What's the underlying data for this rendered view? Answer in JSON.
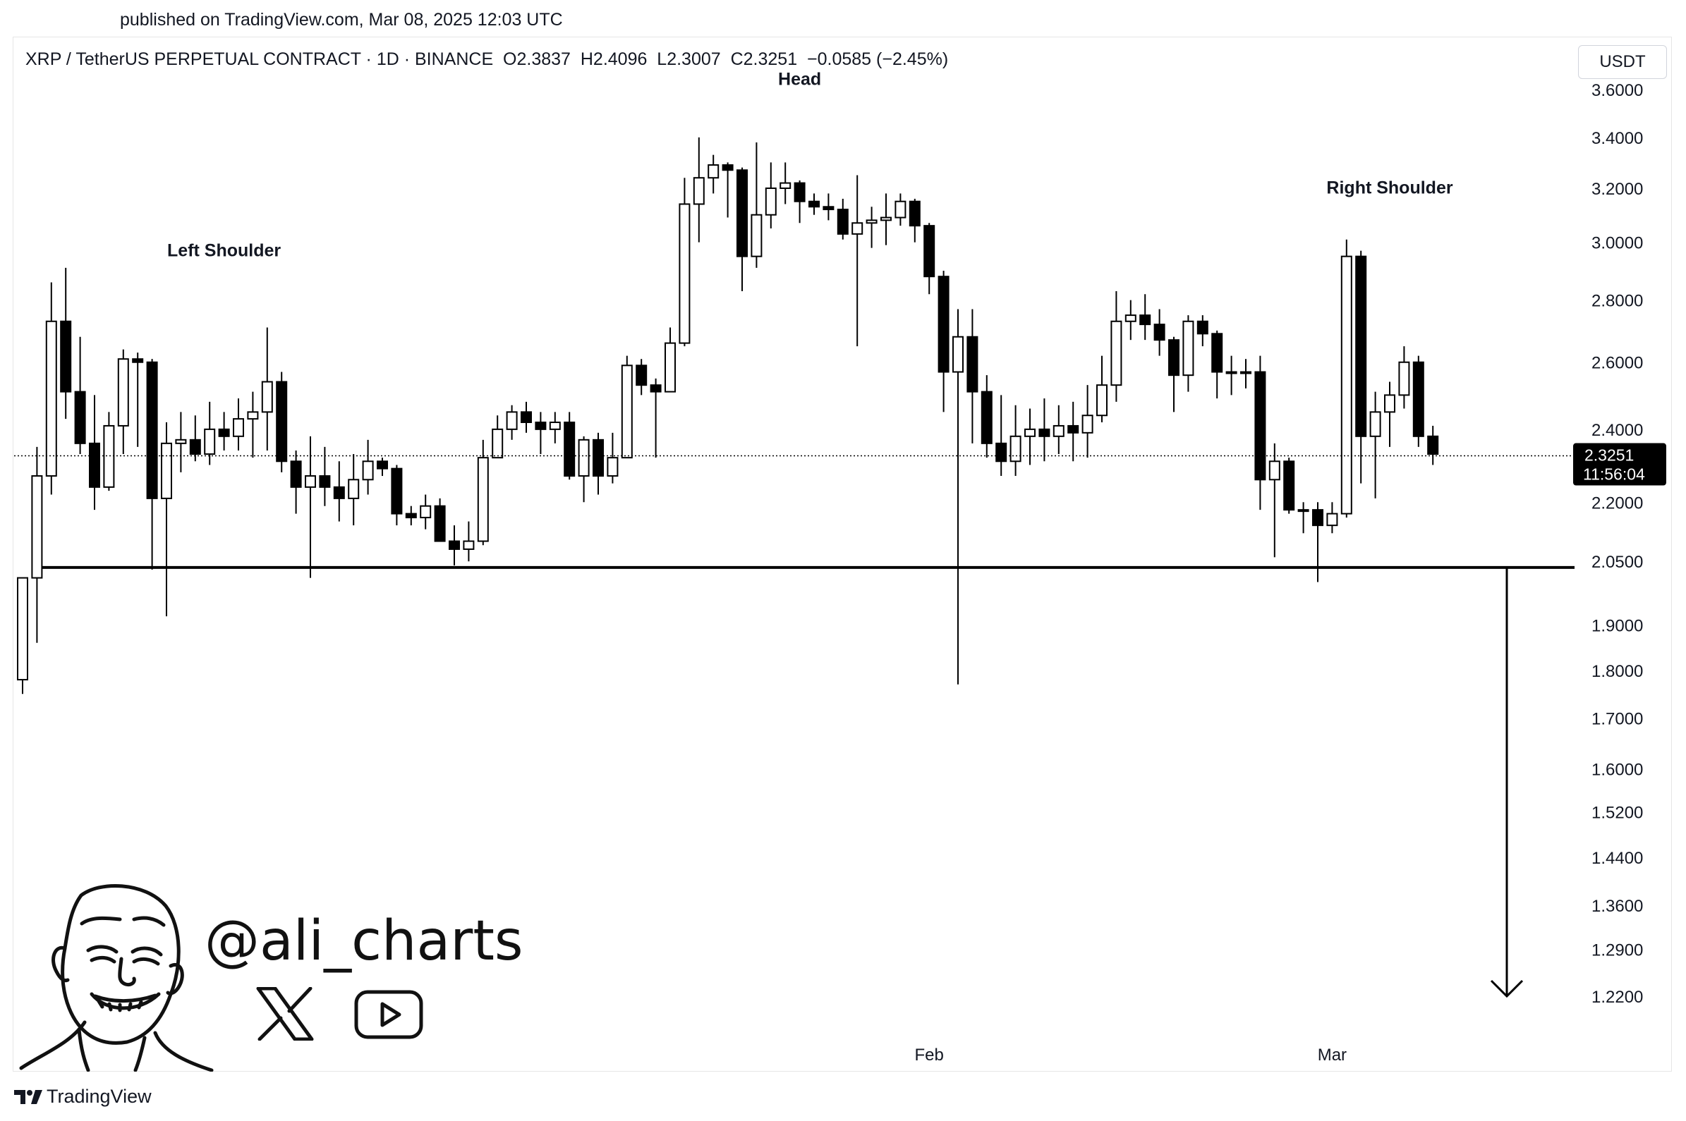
{
  "header": {
    "published": "published on TradingView.com, Mar 08, 2025 12:03 UTC"
  },
  "legend": {
    "symbol": "XRP / TetherUS PERPETUAL CONTRACT · 1D · BINANCE",
    "open": "O2.3837",
    "high": "H2.4096",
    "low": "L2.3007",
    "close": "C2.3251",
    "change": "−0.0585 (−2.45%)"
  },
  "currency_button": "USDT",
  "price_tag": {
    "price": "2.3251",
    "countdown": "11:56:04"
  },
  "branding": {
    "handle": "@ali_charts",
    "footer": "TradingView"
  },
  "icons": [
    "x-logo-icon",
    "youtube-icon",
    "tradingview-logo-icon",
    "cartoon-face"
  ],
  "colors": {
    "up_fill": "#ffffff",
    "down_fill": "#000000",
    "line": "#000000"
  },
  "chart_data": {
    "type": "candlestick",
    "title": "",
    "yaxis_scale": "log",
    "y_ticks": [
      "3.6000",
      "3.4000",
      "3.2000",
      "3.0000",
      "2.8000",
      "2.6000",
      "2.4000",
      "2.2000",
      "2.0500",
      "1.9000",
      "1.8000",
      "1.7000",
      "1.6000",
      "1.5200",
      "1.4400",
      "1.3600",
      "1.2900",
      "1.2200"
    ],
    "x_ticks": [
      {
        "label": "Feb",
        "index": 63
      },
      {
        "label": "Mar",
        "index": 91
      }
    ],
    "annotations": [
      {
        "text": "Left Shoulder",
        "index": 14,
        "price": 2.95
      },
      {
        "text": "Head",
        "index": 54,
        "price": 3.62
      },
      {
        "text": "Right Shoulder",
        "index": 95,
        "price": 3.18
      }
    ],
    "support_level": 2.035,
    "target_price": 1.22,
    "last_price": 2.3251,
    "candles": [
      {
        "o": 1.78,
        "h": 2.01,
        "l": 1.75,
        "c": 2.01
      },
      {
        "o": 2.01,
        "h": 2.35,
        "l": 1.86,
        "c": 2.27
      },
      {
        "o": 2.27,
        "h": 2.86,
        "l": 2.22,
        "c": 2.73
      },
      {
        "o": 2.73,
        "h": 2.91,
        "l": 2.43,
        "c": 2.51
      },
      {
        "o": 2.51,
        "h": 2.68,
        "l": 2.33,
        "c": 2.36
      },
      {
        "o": 2.36,
        "h": 2.5,
        "l": 2.18,
        "c": 2.24
      },
      {
        "o": 2.24,
        "h": 2.45,
        "l": 2.23,
        "c": 2.41
      },
      {
        "o": 2.41,
        "h": 2.64,
        "l": 2.33,
        "c": 2.61
      },
      {
        "o": 2.61,
        "h": 2.63,
        "l": 2.35,
        "c": 2.6
      },
      {
        "o": 2.6,
        "h": 2.61,
        "l": 2.03,
        "c": 2.21
      },
      {
        "o": 2.21,
        "h": 2.42,
        "l": 1.92,
        "c": 2.36
      },
      {
        "o": 2.36,
        "h": 2.45,
        "l": 2.28,
        "c": 2.37
      },
      {
        "o": 2.37,
        "h": 2.44,
        "l": 2.31,
        "c": 2.33
      },
      {
        "o": 2.33,
        "h": 2.48,
        "l": 2.3,
        "c": 2.4
      },
      {
        "o": 2.4,
        "h": 2.45,
        "l": 2.34,
        "c": 2.38
      },
      {
        "o": 2.38,
        "h": 2.49,
        "l": 2.34,
        "c": 2.43
      },
      {
        "o": 2.43,
        "h": 2.51,
        "l": 2.32,
        "c": 2.45
      },
      {
        "o": 2.45,
        "h": 2.71,
        "l": 2.34,
        "c": 2.54
      },
      {
        "o": 2.54,
        "h": 2.57,
        "l": 2.28,
        "c": 2.31
      },
      {
        "o": 2.31,
        "h": 2.34,
        "l": 2.17,
        "c": 2.24
      },
      {
        "o": 2.24,
        "h": 2.38,
        "l": 2.01,
        "c": 2.27
      },
      {
        "o": 2.27,
        "h": 2.35,
        "l": 2.19,
        "c": 2.24
      },
      {
        "o": 2.24,
        "h": 2.31,
        "l": 2.15,
        "c": 2.21
      },
      {
        "o": 2.21,
        "h": 2.33,
        "l": 2.14,
        "c": 2.26
      },
      {
        "o": 2.26,
        "h": 2.37,
        "l": 2.22,
        "c": 2.31
      },
      {
        "o": 2.31,
        "h": 2.32,
        "l": 2.27,
        "c": 2.29
      },
      {
        "o": 2.29,
        "h": 2.3,
        "l": 2.14,
        "c": 2.17
      },
      {
        "o": 2.17,
        "h": 2.19,
        "l": 2.14,
        "c": 2.16
      },
      {
        "o": 2.16,
        "h": 2.22,
        "l": 2.13,
        "c": 2.19
      },
      {
        "o": 2.19,
        "h": 2.21,
        "l": 2.1,
        "c": 2.1
      },
      {
        "o": 2.1,
        "h": 2.14,
        "l": 2.04,
        "c": 2.08
      },
      {
        "o": 2.08,
        "h": 2.15,
        "l": 2.05,
        "c": 2.1
      },
      {
        "o": 2.1,
        "h": 2.37,
        "l": 2.09,
        "c": 2.32
      },
      {
        "o": 2.32,
        "h": 2.44,
        "l": 2.32,
        "c": 2.4
      },
      {
        "o": 2.4,
        "h": 2.47,
        "l": 2.37,
        "c": 2.45
      },
      {
        "o": 2.45,
        "h": 2.48,
        "l": 2.39,
        "c": 2.42
      },
      {
        "o": 2.42,
        "h": 2.45,
        "l": 2.33,
        "c": 2.4
      },
      {
        "o": 2.4,
        "h": 2.45,
        "l": 2.36,
        "c": 2.42
      },
      {
        "o": 2.42,
        "h": 2.45,
        "l": 2.26,
        "c": 2.27
      },
      {
        "o": 2.27,
        "h": 2.38,
        "l": 2.2,
        "c": 2.37
      },
      {
        "o": 2.37,
        "h": 2.39,
        "l": 2.22,
        "c": 2.27
      },
      {
        "o": 2.27,
        "h": 2.39,
        "l": 2.25,
        "c": 2.32
      },
      {
        "o": 2.32,
        "h": 2.62,
        "l": 2.32,
        "c": 2.59
      },
      {
        "o": 2.59,
        "h": 2.61,
        "l": 2.5,
        "c": 2.53
      },
      {
        "o": 2.53,
        "h": 2.55,
        "l": 2.32,
        "c": 2.51
      },
      {
        "o": 2.51,
        "h": 2.71,
        "l": 2.51,
        "c": 2.66
      },
      {
        "o": 2.66,
        "h": 3.24,
        "l": 2.65,
        "c": 3.14
      },
      {
        "o": 3.14,
        "h": 3.4,
        "l": 3.0,
        "c": 3.24
      },
      {
        "o": 3.24,
        "h": 3.33,
        "l": 3.18,
        "c": 3.29
      },
      {
        "o": 3.29,
        "h": 3.3,
        "l": 3.09,
        "c": 3.27
      },
      {
        "o": 3.27,
        "h": 3.28,
        "l": 2.83,
        "c": 2.95
      },
      {
        "o": 2.95,
        "h": 3.38,
        "l": 2.91,
        "c": 3.1
      },
      {
        "o": 3.1,
        "h": 3.3,
        "l": 3.05,
        "c": 3.2
      },
      {
        "o": 3.2,
        "h": 3.3,
        "l": 3.14,
        "c": 3.22
      },
      {
        "o": 3.22,
        "h": 3.23,
        "l": 3.07,
        "c": 3.15
      },
      {
        "o": 3.15,
        "h": 3.18,
        "l": 3.1,
        "c": 3.13
      },
      {
        "o": 3.13,
        "h": 3.18,
        "l": 3.08,
        "c": 3.12
      },
      {
        "o": 3.12,
        "h": 3.16,
        "l": 3.01,
        "c": 3.03
      },
      {
        "o": 3.03,
        "h": 3.25,
        "l": 2.65,
        "c": 3.07
      },
      {
        "o": 3.07,
        "h": 3.13,
        "l": 2.98,
        "c": 3.08
      },
      {
        "o": 3.08,
        "h": 3.18,
        "l": 2.99,
        "c": 3.09
      },
      {
        "o": 3.09,
        "h": 3.18,
        "l": 3.06,
        "c": 3.15
      },
      {
        "o": 3.15,
        "h": 3.16,
        "l": 3.0,
        "c": 3.06
      },
      {
        "o": 3.06,
        "h": 3.07,
        "l": 2.82,
        "c": 2.88
      },
      {
        "o": 2.88,
        "h": 2.9,
        "l": 2.45,
        "c": 2.57
      },
      {
        "o": 2.57,
        "h": 2.77,
        "l": 1.77,
        "c": 2.68
      },
      {
        "o": 2.68,
        "h": 2.77,
        "l": 2.36,
        "c": 2.51
      },
      {
        "o": 2.51,
        "h": 2.56,
        "l": 2.32,
        "c": 2.36
      },
      {
        "o": 2.36,
        "h": 2.5,
        "l": 2.27,
        "c": 2.31
      },
      {
        "o": 2.31,
        "h": 2.47,
        "l": 2.27,
        "c": 2.38
      },
      {
        "o": 2.38,
        "h": 2.46,
        "l": 2.3,
        "c": 2.4
      },
      {
        "o": 2.4,
        "h": 2.49,
        "l": 2.31,
        "c": 2.38
      },
      {
        "o": 2.38,
        "h": 2.47,
        "l": 2.33,
        "c": 2.41
      },
      {
        "o": 2.41,
        "h": 2.48,
        "l": 2.31,
        "c": 2.39
      },
      {
        "o": 2.39,
        "h": 2.53,
        "l": 2.32,
        "c": 2.44
      },
      {
        "o": 2.44,
        "h": 2.62,
        "l": 2.42,
        "c": 2.53
      },
      {
        "o": 2.53,
        "h": 2.83,
        "l": 2.48,
        "c": 2.73
      },
      {
        "o": 2.73,
        "h": 2.8,
        "l": 2.67,
        "c": 2.75
      },
      {
        "o": 2.75,
        "h": 2.82,
        "l": 2.67,
        "c": 2.72
      },
      {
        "o": 2.72,
        "h": 2.77,
        "l": 2.62,
        "c": 2.67
      },
      {
        "o": 2.67,
        "h": 2.68,
        "l": 2.45,
        "c": 2.56
      },
      {
        "o": 2.56,
        "h": 2.75,
        "l": 2.51,
        "c": 2.73
      },
      {
        "o": 2.73,
        "h": 2.75,
        "l": 2.65,
        "c": 2.69
      },
      {
        "o": 2.69,
        "h": 2.7,
        "l": 2.49,
        "c": 2.57
      },
      {
        "o": 2.57,
        "h": 2.62,
        "l": 2.5,
        "c": 2.57
      },
      {
        "o": 2.57,
        "h": 2.61,
        "l": 2.52,
        "c": 2.57
      },
      {
        "o": 2.57,
        "h": 2.62,
        "l": 2.18,
        "c": 2.26
      },
      {
        "o": 2.26,
        "h": 2.36,
        "l": 2.06,
        "c": 2.31
      },
      {
        "o": 2.31,
        "h": 2.32,
        "l": 2.17,
        "c": 2.18
      },
      {
        "o": 2.18,
        "h": 2.2,
        "l": 2.12,
        "c": 2.18
      },
      {
        "o": 2.18,
        "h": 2.2,
        "l": 2.0,
        "c": 2.14
      },
      {
        "o": 2.14,
        "h": 2.2,
        "l": 2.12,
        "c": 2.17
      },
      {
        "o": 2.17,
        "h": 3.01,
        "l": 2.16,
        "c": 2.95
      },
      {
        "o": 2.95,
        "h": 2.97,
        "l": 2.25,
        "c": 2.38
      },
      {
        "o": 2.38,
        "h": 2.51,
        "l": 2.21,
        "c": 2.45
      },
      {
        "o": 2.45,
        "h": 2.54,
        "l": 2.35,
        "c": 2.5
      },
      {
        "o": 2.5,
        "h": 2.65,
        "l": 2.46,
        "c": 2.6
      },
      {
        "o": 2.6,
        "h": 2.62,
        "l": 2.35,
        "c": 2.38
      },
      {
        "o": 2.38,
        "h": 2.41,
        "l": 2.3,
        "c": 2.33
      }
    ]
  }
}
